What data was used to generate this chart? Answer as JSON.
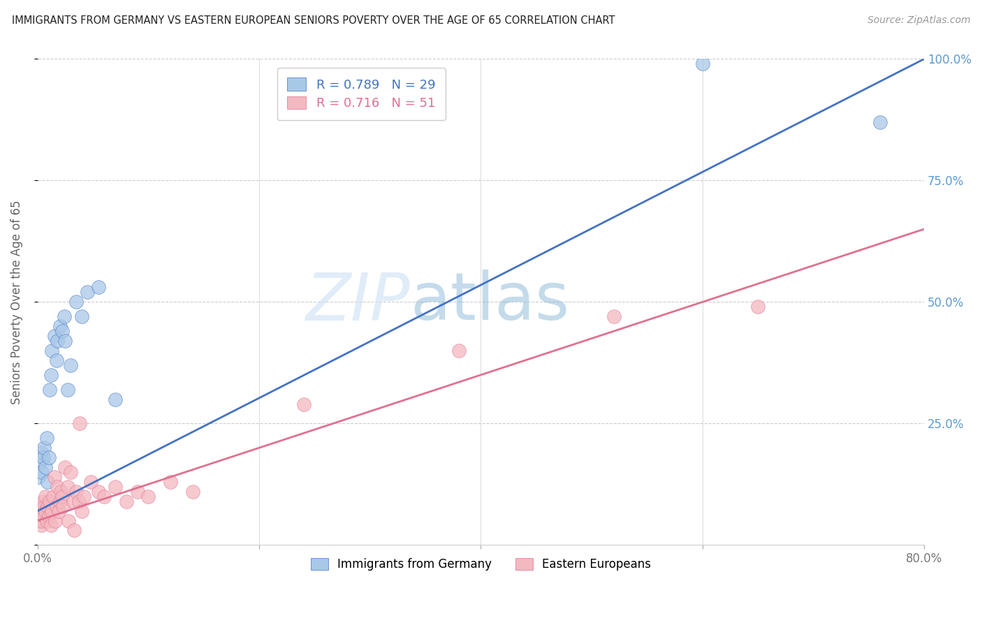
{
  "title": "IMMIGRANTS FROM GERMANY VS EASTERN EUROPEAN SENIORS POVERTY OVER THE AGE OF 65 CORRELATION CHART",
  "source": "Source: ZipAtlas.com",
  "ylabel": "Seniors Poverty Over the Age of 65",
  "xlim": [
    0.0,
    0.8
  ],
  "ylim": [
    0.0,
    1.0
  ],
  "blue_R": 0.789,
  "blue_N": 29,
  "pink_R": 0.716,
  "pink_N": 51,
  "blue_color": "#a8c8e8",
  "pink_color": "#f4b8c0",
  "blue_line_color": "#4472c4",
  "pink_line_color": "#e07090",
  "watermark_zip": "ZIP",
  "watermark_atlas": "atlas",
  "legend_label_blue": "Immigrants from Germany",
  "legend_label_pink": "Eastern Europeans",
  "blue_x": [
    0.001,
    0.002,
    0.003,
    0.004,
    0.005,
    0.006,
    0.007,
    0.008,
    0.009,
    0.01,
    0.011,
    0.012,
    0.013,
    0.015,
    0.017,
    0.018,
    0.02,
    0.022,
    0.024,
    0.025,
    0.027,
    0.03,
    0.035,
    0.04,
    0.045,
    0.055,
    0.07,
    0.6,
    0.76
  ],
  "blue_y": [
    0.14,
    0.17,
    0.19,
    0.15,
    0.18,
    0.2,
    0.16,
    0.22,
    0.13,
    0.18,
    0.32,
    0.35,
    0.4,
    0.43,
    0.38,
    0.42,
    0.45,
    0.44,
    0.47,
    0.42,
    0.32,
    0.37,
    0.5,
    0.47,
    0.52,
    0.53,
    0.3,
    0.99,
    0.87
  ],
  "pink_x": [
    0.001,
    0.002,
    0.002,
    0.003,
    0.004,
    0.004,
    0.005,
    0.006,
    0.006,
    0.007,
    0.007,
    0.008,
    0.009,
    0.01,
    0.011,
    0.012,
    0.013,
    0.014,
    0.015,
    0.016,
    0.017,
    0.018,
    0.019,
    0.02,
    0.021,
    0.022,
    0.023,
    0.025,
    0.027,
    0.028,
    0.03,
    0.032,
    0.033,
    0.035,
    0.037,
    0.038,
    0.04,
    0.042,
    0.048,
    0.055,
    0.06,
    0.07,
    0.08,
    0.09,
    0.1,
    0.12,
    0.14,
    0.24,
    0.38,
    0.52,
    0.65
  ],
  "pink_y": [
    0.05,
    0.06,
    0.08,
    0.04,
    0.07,
    0.05,
    0.09,
    0.06,
    0.08,
    0.07,
    0.1,
    0.05,
    0.08,
    0.06,
    0.09,
    0.04,
    0.07,
    0.1,
    0.14,
    0.05,
    0.08,
    0.12,
    0.07,
    0.09,
    0.11,
    0.1,
    0.08,
    0.16,
    0.12,
    0.05,
    0.15,
    0.09,
    0.03,
    0.11,
    0.09,
    0.25,
    0.07,
    0.1,
    0.13,
    0.11,
    0.1,
    0.12,
    0.09,
    0.11,
    0.1,
    0.13,
    0.11,
    0.29,
    0.4,
    0.47,
    0.49
  ],
  "blue_line_x0": 0.0,
  "blue_line_y0": 0.07,
  "blue_line_x1": 0.8,
  "blue_line_y1": 1.0,
  "pink_line_x0": 0.0,
  "pink_line_y0": 0.05,
  "pink_line_x1": 0.8,
  "pink_line_y1": 0.65,
  "background_color": "#ffffff",
  "right_tick_color": "#5b9bd5",
  "grid_color": "#cccccc"
}
